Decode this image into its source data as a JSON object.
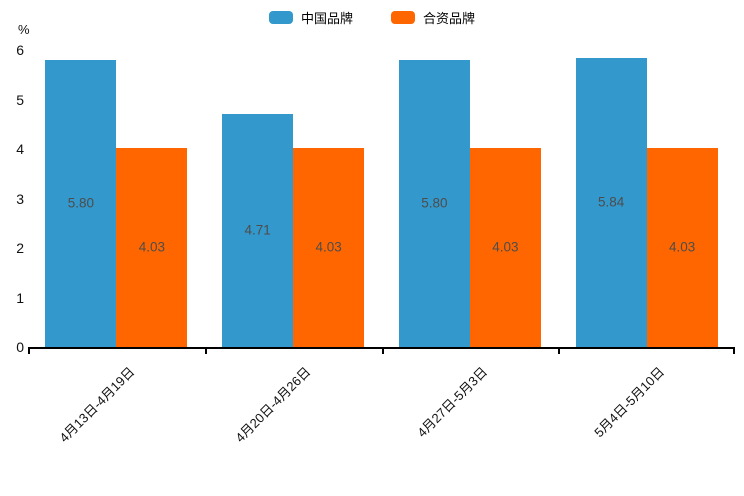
{
  "colors": {
    "series_blue": "#3398CC",
    "series_orange": "#FF6600",
    "bar_value_label": "#4d4d4d",
    "axis_line": "#000000",
    "axis_text": "#111111"
  },
  "legend": {
    "items": [
      {
        "label": "中国品牌",
        "color": "#3398CC"
      },
      {
        "label": "合资品牌",
        "color": "#FF6600"
      }
    ]
  },
  "chart_data": {
    "type": "bar",
    "title": "",
    "xlabel": "",
    "ylabel": "%",
    "ylim": [
      0,
      6
    ],
    "yticks": [
      "0",
      "1",
      "2",
      "3",
      "4",
      "5",
      "6"
    ],
    "grid": false,
    "legend_position": "top-center",
    "x_tick_rotation_deg": 45,
    "categories": [
      "4月13日-4月19日",
      "4月20日-4月26日",
      "4月27日-5月3日",
      "5月4日-5月10日"
    ],
    "series": [
      {
        "name": "中国品牌",
        "color": "#3398CC",
        "values": [
          5.8,
          4.71,
          5.8,
          5.84
        ],
        "labels": [
          "5.80",
          "4.71",
          "5.80",
          "5.84"
        ]
      },
      {
        "name": "合资品牌",
        "color": "#FF6600",
        "values": [
          4.03,
          4.03,
          4.03,
          4.03
        ],
        "labels": [
          "4.03",
          "4.03",
          "4.03",
          "4.03"
        ]
      }
    ]
  }
}
